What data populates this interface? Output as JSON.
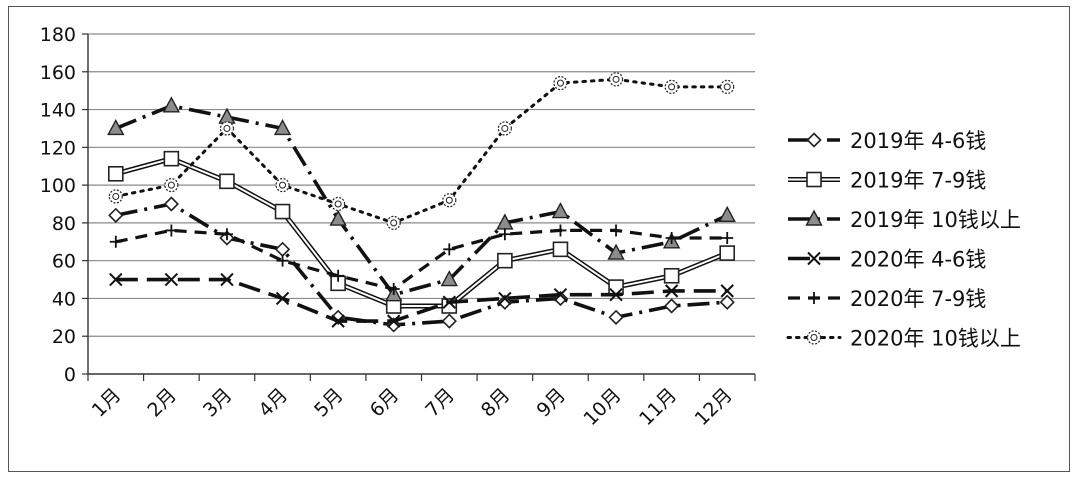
{
  "chart_data": {
    "type": "line",
    "title": "",
    "xlabel": "",
    "ylabel": "",
    "ylim": [
      0,
      180
    ],
    "y_ticks": [
      0,
      20,
      40,
      60,
      80,
      100,
      120,
      140,
      160,
      180
    ],
    "grid": true,
    "legend_position": "right",
    "categories": [
      "1月",
      "2月",
      "3月",
      "4月",
      "5月",
      "6月",
      "7月",
      "8月",
      "9月",
      "10月",
      "11月",
      "12月"
    ],
    "series": [
      {
        "name": "2019年 4-6钱",
        "style": "longdash-dot",
        "marker": "diamond",
        "values": [
          84,
          90,
          72,
          66,
          30,
          26,
          28,
          38,
          40,
          30,
          36,
          38
        ]
      },
      {
        "name": "2019年 7-9钱",
        "style": "double-solid",
        "marker": "square",
        "values": [
          106,
          114,
          102,
          86,
          48,
          36,
          36,
          60,
          66,
          46,
          52,
          64
        ]
      },
      {
        "name": "2019年 10钱以上",
        "style": "longdash-dot",
        "marker": "triangle",
        "values": [
          130,
          142,
          136,
          130,
          82,
          42,
          50,
          80,
          86,
          64,
          70,
          84
        ]
      },
      {
        "name": "2020年 4-6钱",
        "style": "longdash",
        "marker": "x",
        "values": [
          50,
          50,
          50,
          40,
          28,
          28,
          38,
          40,
          42,
          42,
          44,
          44
        ]
      },
      {
        "name": "2020年 7-9钱",
        "style": "dash",
        "marker": "plus",
        "values": [
          70,
          76,
          74,
          60,
          52,
          45,
          66,
          74,
          76,
          76,
          72,
          72
        ]
      },
      {
        "name": "2020年 10钱以上",
        "style": "dot",
        "marker": "circle",
        "values": [
          94,
          100,
          130,
          100,
          90,
          80,
          92,
          130,
          154,
          156,
          152,
          152
        ]
      }
    ]
  }
}
